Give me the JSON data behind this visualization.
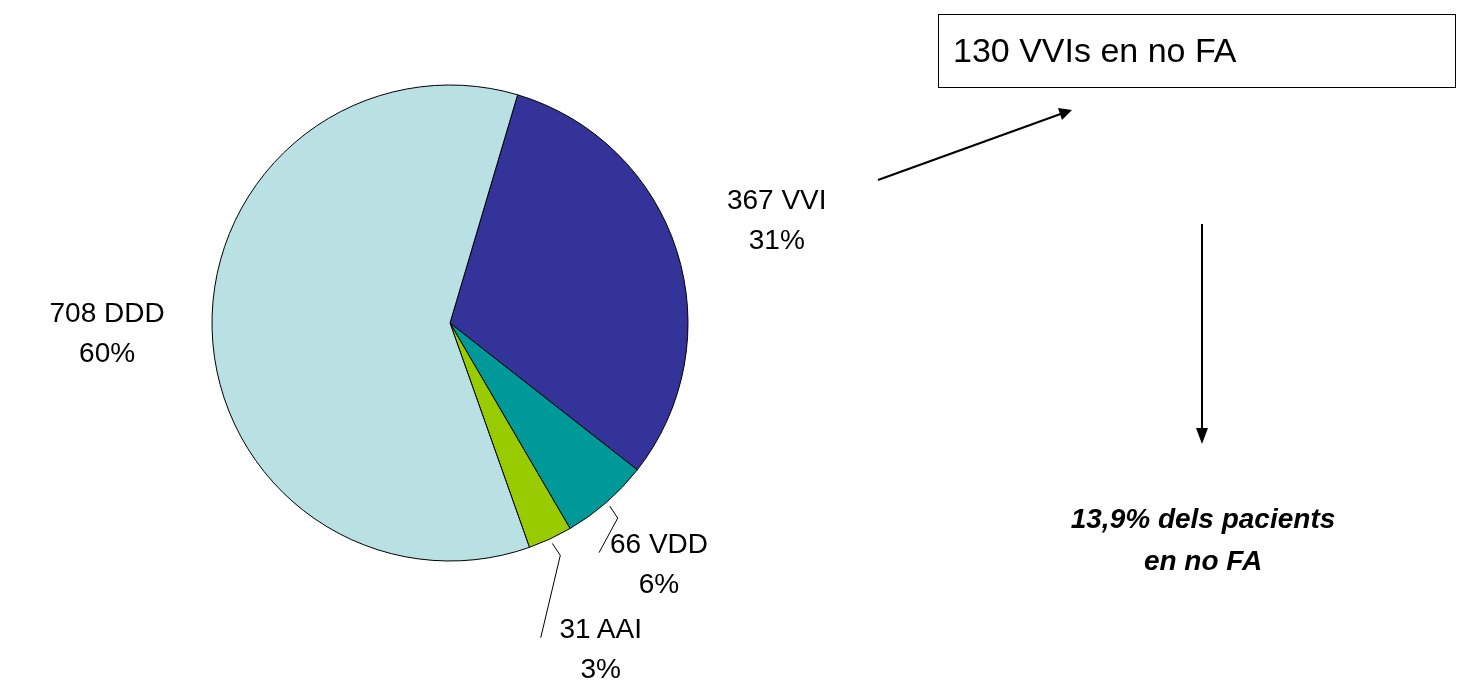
{
  "chart_data": {
    "type": "pie",
    "categories": [
      "367  VVI",
      "66  VDD",
      "31  AAI",
      "708  DDD"
    ],
    "values": [
      31,
      6,
      3,
      60
    ],
    "value_labels": [
      "31%",
      "6%",
      "3%",
      "60%"
    ],
    "colors": [
      "#333399",
      "#009999",
      "#99cc00",
      "#b9e0e3"
    ],
    "annotations": [
      "130 VVIs en no FA",
      "13,9% dels pacients en no FA"
    ],
    "legend": false
  }
}
